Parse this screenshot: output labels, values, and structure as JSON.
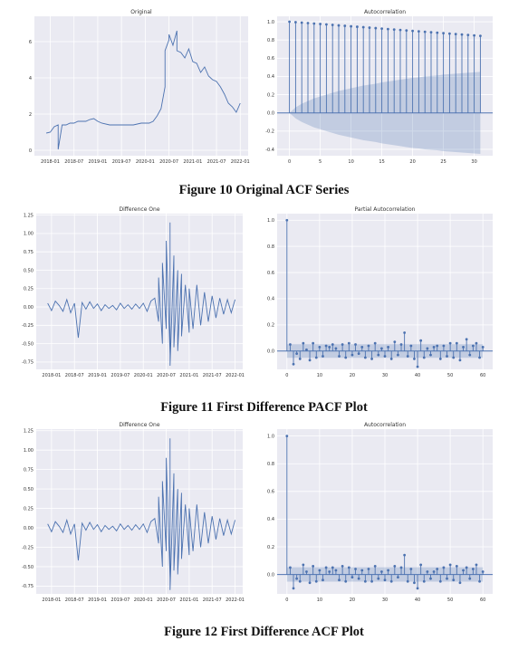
{
  "figures": [
    {
      "caption": "Figure 10 Original ACF Series"
    },
    {
      "caption": "Figure 11 First Difference PACF Plot"
    },
    {
      "caption": "Figure 12 First Difference ACF Plot"
    }
  ],
  "colors": {
    "series": "#4c72b0",
    "plot_background": "#eaeaf2",
    "grid": "#ffffff"
  },
  "chart_data": [
    {
      "type": "line",
      "title": "Original",
      "xlabel": "",
      "ylabel": "",
      "xlim": [
        "2017-09",
        "2022-03"
      ],
      "ylim": [
        -0.3,
        7.4
      ],
      "xticks": [
        "2018-01",
        "2018-07",
        "2019-01",
        "2019-07",
        "2020-01",
        "2020-07",
        "2021-01",
        "2021-07",
        "2022-01"
      ],
      "yticks": [
        0,
        2,
        4,
        6
      ],
      "grid": true,
      "x": [
        "2017-12",
        "2018-01",
        "2018-02",
        "2018-03",
        "2018-03",
        "2018-04",
        "2018-05",
        "2018-06",
        "2018-07",
        "2018-08",
        "2018-09",
        "2018-10",
        "2018-11",
        "2018-12",
        "2019-01",
        "2019-02",
        "2019-04",
        "2019-07",
        "2019-10",
        "2019-12",
        "2020-02",
        "2020-03",
        "2020-04",
        "2020-05",
        "2020-06",
        "2020-06",
        "2020-07",
        "2020-07",
        "2020-08",
        "2020-09",
        "2020-09",
        "2020-10",
        "2020-11",
        "2020-12",
        "2021-01",
        "2021-02",
        "2021-03",
        "2021-04",
        "2021-05",
        "2021-06",
        "2021-07",
        "2021-08",
        "2021-09",
        "2021-10",
        "2021-11",
        "2021-12",
        "2022-01"
      ],
      "y": [
        0.95,
        1.0,
        1.3,
        1.4,
        0.05,
        1.4,
        1.4,
        1.5,
        1.5,
        1.6,
        1.6,
        1.6,
        1.7,
        1.75,
        1.6,
        1.5,
        1.4,
        1.4,
        1.4,
        1.5,
        1.5,
        1.6,
        1.9,
        2.3,
        3.5,
        5.5,
        6.1,
        6.4,
        5.8,
        6.6,
        5.5,
        5.4,
        5.1,
        5.6,
        4.9,
        4.8,
        4.3,
        4.6,
        4.1,
        3.9,
        3.8,
        3.5,
        3.1,
        2.6,
        2.4,
        2.1,
        2.6
      ]
    },
    {
      "type": "bar",
      "title": "Autocorrelation",
      "xlabel": "",
      "ylabel": "",
      "xlim": [
        -2,
        33
      ],
      "ylim": [
        -0.47,
        1.06
      ],
      "xticks": [
        0,
        5,
        10,
        15,
        20,
        25,
        30
      ],
      "yticks": [
        -0.4,
        -0.2,
        0.0,
        0.2,
        0.4,
        0.6,
        0.8,
        1.0
      ],
      "grid": true,
      "lags": [
        0,
        1,
        2,
        3,
        4,
        5,
        6,
        7,
        8,
        9,
        10,
        11,
        12,
        13,
        14,
        15,
        16,
        17,
        18,
        19,
        20,
        21,
        22,
        23,
        24,
        25,
        26,
        27,
        28,
        29,
        30,
        31
      ],
      "values": [
        1.0,
        0.995,
        0.99,
        0.985,
        0.98,
        0.975,
        0.97,
        0.965,
        0.96,
        0.955,
        0.95,
        0.945,
        0.94,
        0.935,
        0.93,
        0.925,
        0.92,
        0.915,
        0.91,
        0.905,
        0.9,
        0.895,
        0.89,
        0.885,
        0.88,
        0.875,
        0.87,
        0.865,
        0.86,
        0.855,
        0.85,
        0.845
      ],
      "confidence_band": [
        0.0,
        0.06,
        0.1,
        0.13,
        0.16,
        0.18,
        0.2,
        0.22,
        0.24,
        0.255,
        0.27,
        0.285,
        0.3,
        0.31,
        0.32,
        0.335,
        0.345,
        0.355,
        0.365,
        0.375,
        0.385,
        0.39,
        0.4,
        0.405,
        0.41,
        0.42,
        0.425,
        0.43,
        0.435,
        0.44,
        0.445,
        0.45
      ]
    },
    {
      "type": "line",
      "title": "Difference One",
      "xlabel": "",
      "ylabel": "",
      "xlim": [
        "2017-09",
        "2022-03"
      ],
      "ylim": [
        -0.85,
        1.27
      ],
      "xticks": [
        "2018-01",
        "2018-07",
        "2019-01",
        "2019-07",
        "2020-01",
        "2020-07",
        "2021-01",
        "2021-07",
        "2022-01"
      ],
      "yticks": [
        -0.75,
        -0.5,
        -0.25,
        0.0,
        0.25,
        0.5,
        0.75,
        1.0,
        1.25
      ],
      "grid": true,
      "x": [
        "2017-12",
        "2018-01",
        "2018-02",
        "2018-03",
        "2018-04",
        "2018-05",
        "2018-06",
        "2018-07",
        "2018-08",
        "2018-09",
        "2018-10",
        "2018-11",
        "2018-12",
        "2019-01",
        "2019-02",
        "2019-03",
        "2019-04",
        "2019-05",
        "2019-06",
        "2019-07",
        "2019-08",
        "2019-09",
        "2019-10",
        "2019-11",
        "2019-12",
        "2020-01",
        "2020-02",
        "2020-03",
        "2020-04",
        "2020-05",
        "2020-05",
        "2020-06",
        "2020-06",
        "2020-07",
        "2020-07",
        "2020-08",
        "2020-08",
        "2020-08",
        "2020-09",
        "2020-09",
        "2020-10",
        "2020-10",
        "2020-11",
        "2020-11",
        "2020-12",
        "2021-01",
        "2021-01",
        "2021-02",
        "2021-03",
        "2021-04",
        "2021-05",
        "2021-06",
        "2021-07",
        "2021-08",
        "2021-09",
        "2021-10",
        "2021-11",
        "2021-12",
        "2022-01"
      ],
      "y": [
        0.05,
        -0.05,
        0.08,
        0.02,
        -0.06,
        0.1,
        -0.08,
        0.05,
        -0.42,
        0.06,
        -0.03,
        0.07,
        -0.02,
        0.04,
        -0.05,
        0.03,
        -0.02,
        0.02,
        -0.04,
        0.05,
        -0.02,
        0.03,
        -0.03,
        0.04,
        -0.02,
        0.05,
        -0.06,
        0.08,
        0.12,
        -0.2,
        0.4,
        -0.5,
        0.6,
        -0.3,
        0.9,
        -0.65,
        1.15,
        -0.8,
        0.7,
        -0.55,
        0.5,
        -0.6,
        0.45,
        -0.4,
        0.3,
        -0.35,
        0.25,
        -0.3,
        0.3,
        -0.25,
        0.2,
        -0.2,
        0.15,
        -0.15,
        0.12,
        -0.1,
        0.1,
        -0.08,
        0.1
      ]
    },
    {
      "type": "bar",
      "title": "Partial Autocorrelation",
      "xlabel": "",
      "ylabel": "",
      "xlim": [
        -3,
        63
      ],
      "ylim": [
        -0.14,
        1.05
      ],
      "xticks": [
        0,
        10,
        20,
        30,
        40,
        50,
        60
      ],
      "yticks": [
        0.0,
        0.2,
        0.4,
        0.6,
        0.8,
        1.0
      ],
      "grid": true,
      "lags": [
        0,
        1,
        2,
        3,
        4,
        5,
        6,
        7,
        8,
        9,
        10,
        11,
        12,
        13,
        14,
        15,
        16,
        17,
        18,
        19,
        20,
        21,
        22,
        23,
        24,
        25,
        26,
        27,
        28,
        29,
        30,
        31,
        32,
        33,
        34,
        35,
        36,
        37,
        38,
        39,
        40,
        41,
        42,
        43,
        44,
        45,
        46,
        47,
        48,
        49,
        50,
        51,
        52,
        53,
        54,
        55,
        56,
        57,
        58,
        59,
        60
      ],
      "values": [
        1.0,
        0.05,
        -0.1,
        -0.02,
        -0.06,
        0.06,
        0.01,
        -0.07,
        0.06,
        -0.05,
        0.03,
        -0.04,
        0.04,
        0.03,
        0.05,
        0.02,
        -0.04,
        0.05,
        -0.05,
        0.06,
        -0.03,
        0.05,
        -0.02,
        0.03,
        -0.05,
        0.04,
        -0.06,
        0.06,
        -0.03,
        0.02,
        -0.04,
        0.03,
        -0.06,
        0.07,
        -0.03,
        0.05,
        0.14,
        -0.04,
        0.04,
        -0.06,
        -0.12,
        0.08,
        -0.05,
        0.02,
        -0.03,
        0.03,
        0.04,
        -0.06,
        0.04,
        -0.04,
        0.06,
        -0.05,
        0.06,
        -0.07,
        0.03,
        0.09,
        -0.03,
        0.04,
        0.06,
        -0.05,
        0.03
      ],
      "confidence_band": 0.052
    },
    {
      "type": "line",
      "title": "Difference One",
      "xlabel": "",
      "ylabel": "",
      "xlim": [
        "2017-09",
        "2022-03"
      ],
      "ylim": [
        -0.85,
        1.27
      ],
      "xticks": [
        "2018-01",
        "2018-07",
        "2019-01",
        "2019-07",
        "2020-01",
        "2020-07",
        "2021-01",
        "2021-07",
        "2022-01"
      ],
      "yticks": [
        -0.75,
        -0.5,
        -0.25,
        0.0,
        0.25,
        0.5,
        0.75,
        1.0,
        1.25
      ],
      "grid": true,
      "x": [
        "2017-12",
        "2018-01",
        "2018-02",
        "2018-03",
        "2018-04",
        "2018-05",
        "2018-06",
        "2018-07",
        "2018-08",
        "2018-09",
        "2018-10",
        "2018-11",
        "2018-12",
        "2019-01",
        "2019-02",
        "2019-03",
        "2019-04",
        "2019-05",
        "2019-06",
        "2019-07",
        "2019-08",
        "2019-09",
        "2019-10",
        "2019-11",
        "2019-12",
        "2020-01",
        "2020-02",
        "2020-03",
        "2020-04",
        "2020-05",
        "2020-05",
        "2020-06",
        "2020-06",
        "2020-07",
        "2020-07",
        "2020-08",
        "2020-08",
        "2020-08",
        "2020-09",
        "2020-09",
        "2020-10",
        "2020-10",
        "2020-11",
        "2020-11",
        "2020-12",
        "2021-01",
        "2021-01",
        "2021-02",
        "2021-03",
        "2021-04",
        "2021-05",
        "2021-06",
        "2021-07",
        "2021-08",
        "2021-09",
        "2021-10",
        "2021-11",
        "2021-12",
        "2022-01"
      ],
      "y": [
        0.05,
        -0.05,
        0.08,
        0.02,
        -0.06,
        0.1,
        -0.08,
        0.05,
        -0.42,
        0.06,
        -0.03,
        0.07,
        -0.02,
        0.04,
        -0.05,
        0.03,
        -0.02,
        0.02,
        -0.04,
        0.05,
        -0.02,
        0.03,
        -0.03,
        0.04,
        -0.02,
        0.05,
        -0.06,
        0.08,
        0.12,
        -0.2,
        0.4,
        -0.5,
        0.6,
        -0.3,
        0.9,
        -0.65,
        1.15,
        -0.8,
        0.7,
        -0.55,
        0.5,
        -0.6,
        0.45,
        -0.4,
        0.3,
        -0.35,
        0.25,
        -0.3,
        0.3,
        -0.25,
        0.2,
        -0.2,
        0.15,
        -0.15,
        0.12,
        -0.1,
        0.1,
        -0.08,
        0.1
      ]
    },
    {
      "type": "bar",
      "title": "Autocorrelation",
      "xlabel": "",
      "ylabel": "",
      "xlim": [
        -3,
        63
      ],
      "ylim": [
        -0.14,
        1.05
      ],
      "xticks": [
        0,
        10,
        20,
        30,
        40,
        50,
        60
      ],
      "yticks": [
        0.0,
        0.2,
        0.4,
        0.6,
        0.8,
        1.0
      ],
      "grid": true,
      "lags": [
        0,
        1,
        2,
        3,
        4,
        5,
        6,
        7,
        8,
        9,
        10,
        11,
        12,
        13,
        14,
        15,
        16,
        17,
        18,
        19,
        20,
        21,
        22,
        23,
        24,
        25,
        26,
        27,
        28,
        29,
        30,
        31,
        32,
        33,
        34,
        35,
        36,
        37,
        38,
        39,
        40,
        41,
        42,
        43,
        44,
        45,
        46,
        47,
        48,
        49,
        50,
        51,
        52,
        53,
        54,
        55,
        56,
        57,
        58,
        59,
        60
      ],
      "values": [
        1.0,
        0.05,
        -0.1,
        -0.03,
        -0.05,
        0.07,
        0.02,
        -0.06,
        0.06,
        -0.05,
        0.03,
        -0.04,
        0.05,
        0.02,
        0.05,
        0.03,
        -0.04,
        0.06,
        -0.05,
        0.05,
        -0.02,
        0.04,
        -0.03,
        0.03,
        -0.05,
        0.04,
        -0.05,
        0.06,
        -0.03,
        0.02,
        -0.04,
        0.03,
        -0.05,
        0.06,
        -0.02,
        0.05,
        0.14,
        -0.05,
        0.04,
        -0.06,
        -0.1,
        0.07,
        -0.05,
        0.02,
        -0.03,
        0.02,
        0.04,
        -0.05,
        0.05,
        -0.03,
        0.07,
        -0.04,
        0.06,
        -0.06,
        0.03,
        0.05,
        -0.03,
        0.04,
        0.07,
        -0.05,
        0.02
      ],
      "confidence_band": 0.052
    }
  ]
}
